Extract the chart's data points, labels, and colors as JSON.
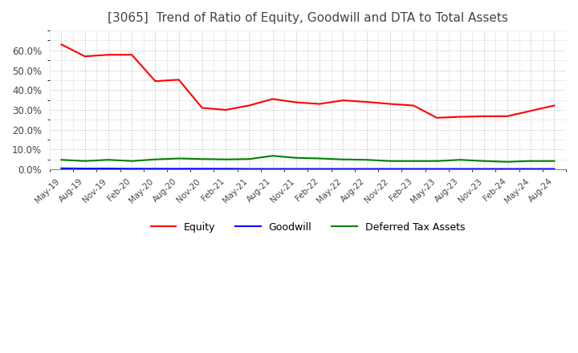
{
  "title": "[3065]  Trend of Ratio of Equity, Goodwill and DTA to Total Assets",
  "title_fontsize": 11,
  "title_color": "#444444",
  "background_color": "#ffffff",
  "grid_color": "#aaaaaa",
  "ylim": [
    0.0,
    0.7
  ],
  "yticks": [
    0.0,
    0.1,
    0.2,
    0.3,
    0.4,
    0.5,
    0.6
  ],
  "legend": [
    "Equity",
    "Goodwill",
    "Deferred Tax Assets"
  ],
  "legend_colors": [
    "#ff0000",
    "#0000ff",
    "#008000"
  ],
  "x_labels": [
    "May-19",
    "Aug-19",
    "Nov-19",
    "Feb-20",
    "May-20",
    "Aug-20",
    "Nov-20",
    "Feb-21",
    "May-21",
    "Aug-21",
    "Nov-21",
    "Feb-22",
    "May-22",
    "Aug-22",
    "Nov-22",
    "Feb-23",
    "May-23",
    "Aug-23",
    "Nov-23",
    "Feb-24",
    "May-24",
    "Aug-24"
  ],
  "equity": [
    0.63,
    0.57,
    0.578,
    0.578,
    0.445,
    0.452,
    0.31,
    0.3,
    0.322,
    0.355,
    0.338,
    0.33,
    0.348,
    0.34,
    0.33,
    0.322,
    0.26,
    0.265,
    0.268,
    0.268,
    0.295,
    0.322
  ],
  "goodwill": [
    0.005,
    0.004,
    0.004,
    0.003,
    0.003,
    0.003,
    0.003,
    0.003,
    0.002,
    0.002,
    0.002,
    0.002,
    0.002,
    0.002,
    0.002,
    0.002,
    0.002,
    0.002,
    0.002,
    0.002,
    0.002,
    0.002
  ],
  "dta": [
    0.048,
    0.042,
    0.048,
    0.042,
    0.05,
    0.055,
    0.052,
    0.05,
    0.052,
    0.068,
    0.058,
    0.055,
    0.05,
    0.048,
    0.042,
    0.042,
    0.042,
    0.048,
    0.042,
    0.038,
    0.042,
    0.042
  ]
}
